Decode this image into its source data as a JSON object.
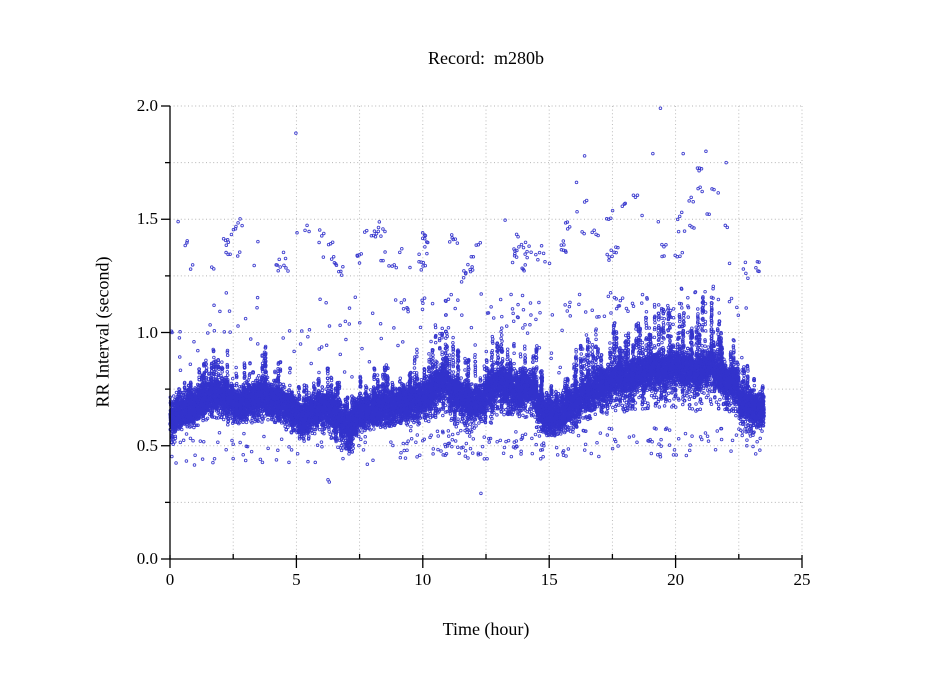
{
  "chart_data": {
    "type": "scatter",
    "title": "Record:  m280b",
    "xlabel": "Time (hour)",
    "ylabel": "RR Interval (second)",
    "xlim": [
      0,
      25
    ],
    "ylim": [
      0.0,
      2.0
    ],
    "x_tick_labels": [
      "0",
      "5",
      "10",
      "15",
      "20",
      "25"
    ],
    "y_tick_labels": [
      "0.0",
      "0.5",
      "1.0",
      "1.5",
      "2.0"
    ],
    "x_major_ticks": [
      0,
      5,
      10,
      15,
      20,
      25
    ],
    "x_minor_step": 2.5,
    "y_major_ticks": [
      0.0,
      0.5,
      1.0,
      1.5,
      2.0
    ],
    "y_minor_step": 0.25,
    "grid": "light dotted gridlines at every major and minor tick, no top or right frame",
    "marker": {
      "shape": "open-circle",
      "color": "#3333cc",
      "radius_px": 1.3
    },
    "time_span_hours": [
      0,
      23.5
    ],
    "band_profile": {
      "t_start": 0,
      "t_step": 0.25,
      "columns": [
        "center",
        "low",
        "high"
      ],
      "entries": [
        [
          0.63,
          0.5,
          0.76
        ],
        [
          0.65,
          0.57,
          0.78
        ],
        [
          0.66,
          0.58,
          0.8
        ],
        [
          0.67,
          0.58,
          0.82
        ],
        [
          0.69,
          0.59,
          0.86
        ],
        [
          0.71,
          0.6,
          0.93
        ],
        [
          0.73,
          0.61,
          0.96
        ],
        [
          0.73,
          0.62,
          0.97
        ],
        [
          0.72,
          0.6,
          0.97
        ],
        [
          0.71,
          0.59,
          0.93
        ],
        [
          0.68,
          0.58,
          0.86
        ],
        [
          0.69,
          0.59,
          0.88
        ],
        [
          0.7,
          0.6,
          0.9
        ],
        [
          0.71,
          0.6,
          0.92
        ],
        [
          0.72,
          0.6,
          0.95
        ],
        [
          0.72,
          0.61,
          0.97
        ],
        [
          0.7,
          0.59,
          0.93
        ],
        [
          0.69,
          0.58,
          0.9
        ],
        [
          0.68,
          0.56,
          0.86
        ],
        [
          0.66,
          0.55,
          0.83
        ],
        [
          0.63,
          0.53,
          0.8
        ],
        [
          0.62,
          0.52,
          0.78
        ],
        [
          0.65,
          0.55,
          0.83
        ],
        [
          0.66,
          0.56,
          0.85
        ],
        [
          0.67,
          0.55,
          0.87
        ],
        [
          0.66,
          0.53,
          0.86
        ],
        [
          0.64,
          0.5,
          0.82
        ],
        [
          0.6,
          0.47,
          0.78
        ],
        [
          0.58,
          0.46,
          0.74
        ],
        [
          0.63,
          0.54,
          0.8
        ],
        [
          0.65,
          0.56,
          0.83
        ],
        [
          0.66,
          0.57,
          0.84
        ],
        [
          0.67,
          0.57,
          0.86
        ],
        [
          0.68,
          0.58,
          0.9
        ],
        [
          0.68,
          0.58,
          0.88
        ],
        [
          0.68,
          0.58,
          0.87
        ],
        [
          0.69,
          0.59,
          0.9
        ],
        [
          0.7,
          0.59,
          0.92
        ],
        [
          0.7,
          0.58,
          0.93
        ],
        [
          0.71,
          0.59,
          0.95
        ],
        [
          0.72,
          0.6,
          0.98
        ],
        [
          0.74,
          0.61,
          1.02
        ],
        [
          0.78,
          0.62,
          1.12
        ],
        [
          0.8,
          0.63,
          1.17
        ],
        [
          0.74,
          0.6,
          1.0
        ],
        [
          0.72,
          0.58,
          0.95
        ],
        [
          0.71,
          0.56,
          0.93
        ],
        [
          0.69,
          0.54,
          0.9
        ],
        [
          0.7,
          0.57,
          0.92
        ],
        [
          0.71,
          0.58,
          0.94
        ],
        [
          0.75,
          0.6,
          1.0
        ],
        [
          0.78,
          0.62,
          1.03
        ],
        [
          0.78,
          0.63,
          1.05
        ],
        [
          0.77,
          0.63,
          1.0
        ],
        [
          0.75,
          0.62,
          0.96
        ],
        [
          0.75,
          0.62,
          0.95
        ],
        [
          0.76,
          0.62,
          0.97
        ],
        [
          0.76,
          0.62,
          0.98
        ],
        [
          0.68,
          0.56,
          0.85
        ],
        [
          0.64,
          0.54,
          0.78
        ],
        [
          0.63,
          0.53,
          0.77
        ],
        [
          0.64,
          0.54,
          0.79
        ],
        [
          0.66,
          0.55,
          0.84
        ],
        [
          0.68,
          0.56,
          0.9
        ],
        [
          0.7,
          0.58,
          0.97
        ],
        [
          0.73,
          0.6,
          1.05
        ],
        [
          0.74,
          0.61,
          1.02
        ],
        [
          0.76,
          0.62,
          1.03
        ],
        [
          0.77,
          0.63,
          1.05
        ],
        [
          0.78,
          0.64,
          1.06
        ],
        [
          0.8,
          0.65,
          1.08
        ],
        [
          0.8,
          0.65,
          1.07
        ],
        [
          0.8,
          0.65,
          1.06
        ],
        [
          0.81,
          0.66,
          1.08
        ],
        [
          0.82,
          0.66,
          1.1
        ],
        [
          0.83,
          0.66,
          1.12
        ],
        [
          0.84,
          0.67,
          1.16
        ],
        [
          0.84,
          0.67,
          1.18
        ],
        [
          0.84,
          0.67,
          1.2
        ],
        [
          0.85,
          0.67,
          1.21
        ],
        [
          0.85,
          0.67,
          1.22
        ],
        [
          0.84,
          0.66,
          1.2
        ],
        [
          0.83,
          0.66,
          1.16
        ],
        [
          0.82,
          0.65,
          1.14
        ],
        [
          0.84,
          0.67,
          1.2
        ],
        [
          0.86,
          0.68,
          1.25
        ],
        [
          0.82,
          0.66,
          1.12
        ],
        [
          0.8,
          0.65,
          1.08
        ],
        [
          0.78,
          0.64,
          1.02
        ],
        [
          0.77,
          0.63,
          0.98
        ],
        [
          0.7,
          0.56,
          0.92
        ],
        [
          0.68,
          0.55,
          0.88
        ],
        [
          0.67,
          0.55,
          0.82
        ],
        [
          0.66,
          0.55,
          0.78
        ]
      ]
    },
    "upper_cloud_segments": [
      {
        "t0": 0.1,
        "t1": 16.0,
        "y_mid": 1.36,
        "y_amp": 0.07,
        "y_noise": 0.08,
        "per_hour": 10
      },
      {
        "t0": 16.0,
        "t1": 22.3,
        "y_mid": 1.5,
        "y_amp": 0.1,
        "y_noise": 0.13,
        "per_hour": 11
      },
      {
        "t0": 22.4,
        "t1": 23.3,
        "y_mid": 1.28,
        "y_amp": 0.04,
        "y_noise": 0.05,
        "per_hour": 9
      }
    ],
    "mid_scatter": {
      "per_hour": 7,
      "y_max": 1.18
    },
    "low_scatter_segments": [
      {
        "t0": 0.05,
        "t1": 9.0,
        "y0": 0.41,
        "y1": 0.56,
        "per_hour": 7
      },
      {
        "t0": 9.0,
        "t1": 15.0,
        "y0": 0.44,
        "y1": 0.57,
        "per_hour": 16
      },
      {
        "t0": 15.0,
        "t1": 23.45,
        "y0": 0.45,
        "y1": 0.58,
        "per_hour": 10
      }
    ],
    "outlier_points": [
      [
        4.98,
        1.88
      ],
      [
        19.4,
        1.99
      ],
      [
        16.4,
        1.78
      ],
      [
        19.1,
        1.79
      ],
      [
        20.3,
        1.79
      ],
      [
        21.2,
        1.8
      ],
      [
        22.0,
        1.75
      ],
      [
        6.25,
        0.35
      ],
      [
        6.3,
        0.34
      ],
      [
        12.3,
        0.29
      ]
    ]
  }
}
